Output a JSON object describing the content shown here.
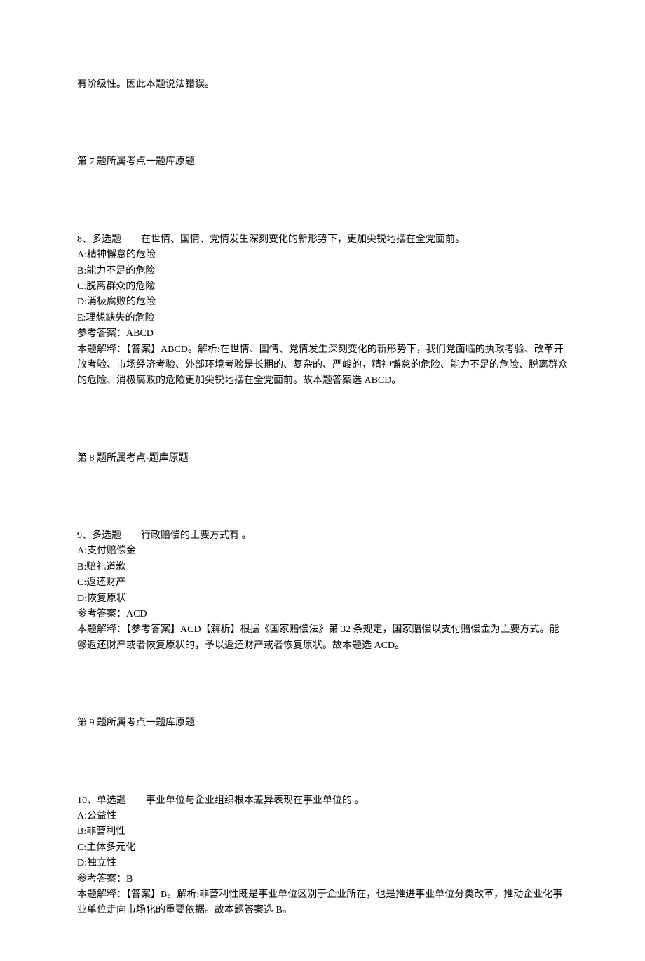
{
  "intro_line": "有阶级性。因此本题说法错误。",
  "q7_ref": "第 7 题所属考点一题库原题",
  "q8": {
    "stem": "8、多选题　　在世情、国情、党情发生深刻变化的新形势下，更加尖锐地摆在全党面前。",
    "opt_a": "A:精神懈怠的危险",
    "opt_b": "B:能力不足的危险",
    "opt_c": "C:脱离群众的危险",
    "opt_d": "D:消极腐败的危险",
    "opt_e": "E:理想缺失的危险",
    "answer": "参考答案：ABCD",
    "explain": "本题解释：【答案】ABCD。解析:在世情、国情、党情发生深刻变化的新形势下，我们党面临的执政考验、改革开放考验、市场经济考验、外部环境考验是长期的、复杂的、严峻的，精神懈怠的危险、能力不足的危险、脱离群众的危险、消极腐败的危险更加尖锐地摆在全党面前。故本题答案选 ABCD。",
    "ref": "第 8 题所属考点-题库原题"
  },
  "q9": {
    "stem": "9、多选题　　行政赔偿的主要方式有 。",
    "opt_a": "A:支付赔偿金",
    "opt_b": "B:赔礼道歉",
    "opt_c": "C:返还财产",
    "opt_d": "D:恢复原状",
    "answer": "参考答案：ACD",
    "explain": "本题解释：【参考答案】ACD【解析】根据《国家赔偿法》第 32 条规定，国家赔偿以支付赔偿金为主要方式。能够返还财产或者恢复原状的，予以返还财产或者恢复原状。故本题选 ACD。",
    "ref": "第 9 题所属考点一题库原题"
  },
  "q10": {
    "stem": "10、单选题　　事业单位与企业组织根本差异表现在事业单位的 。",
    "opt_a": "A:公益性",
    "opt_b": "B:非营利性",
    "opt_c": "C:主体多元化",
    "opt_d": "D:独立性",
    "answer": "参考答案：B",
    "explain": "本题解释：【答案】B。解析:非营利性既是事业单位区别于企业所在，也是推进事业单位分类改革，推动企业化事业单位走向市场化的重要依据。故本题答案选 B。"
  }
}
